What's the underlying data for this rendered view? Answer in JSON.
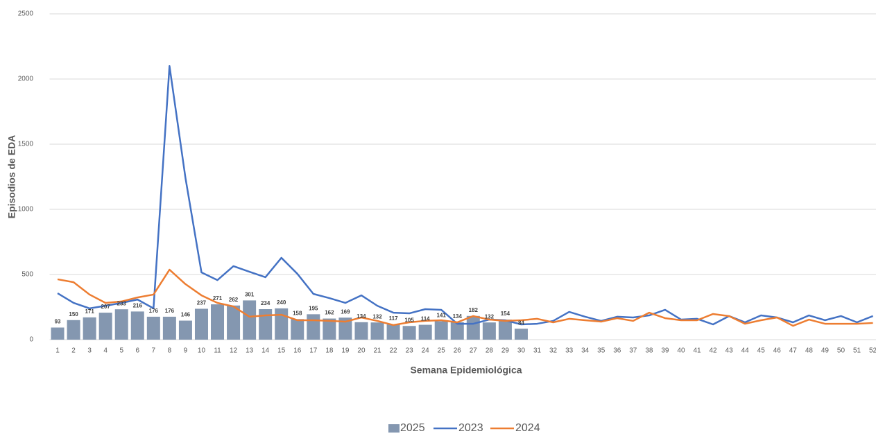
{
  "chart_data": {
    "type": "bar_line",
    "x_label": "Semana Epidemiológica",
    "y_label": "Episodios de EDA",
    "categories": [
      "1",
      "2",
      "3",
      "4",
      "5",
      "6",
      "7",
      "8",
      "9",
      "10",
      "11",
      "12",
      "13",
      "14",
      "15",
      "16",
      "17",
      "18",
      "19",
      "20",
      "21",
      "22",
      "23",
      "24",
      "25",
      "26",
      "27",
      "28",
      "29",
      "30",
      "31",
      "32",
      "33",
      "34",
      "35",
      "36",
      "37",
      "38",
      "39",
      "40",
      "41",
      "42",
      "43",
      "44",
      "45",
      "46",
      "47",
      "48",
      "49",
      "50",
      "51",
      "52"
    ],
    "ylim": [
      0,
      2500
    ],
    "yticks": [
      0,
      500,
      1000,
      1500,
      2000,
      2500
    ],
    "grid": true,
    "legend": "bottom",
    "series": [
      {
        "name": "2025",
        "type": "bar",
        "color": "#8497b0",
        "values": [
          93,
          150,
          171,
          207,
          233,
          216,
          176,
          176,
          146,
          237,
          271,
          262,
          301,
          234,
          240,
          158,
          195,
          162,
          169,
          134,
          132,
          117,
          105,
          114,
          141,
          134,
          182,
          132,
          154,
          84,
          null,
          null,
          null,
          null,
          null,
          null,
          null,
          null,
          null,
          null,
          null,
          null,
          null,
          null,
          null,
          null,
          null,
          null,
          null,
          null,
          null,
          null
        ]
      },
      {
        "name": "2023",
        "type": "line",
        "color": "#4472c4",
        "values": [
          356,
          282,
          240,
          260,
          282,
          308,
          240,
          2100,
          1240,
          516,
          457,
          564,
          521,
          479,
          628,
          505,
          351,
          319,
          282,
          340,
          260,
          207,
          202,
          234,
          229,
          122,
          122,
          154,
          149,
          117,
          122,
          144,
          213,
          176,
          144,
          176,
          170,
          186,
          229,
          154,
          160,
          117,
          181,
          133,
          186,
          170,
          133,
          186,
          149,
          181,
          133,
          181
        ]
      },
      {
        "name": "2024",
        "type": "line",
        "color": "#ed7d31",
        "values": [
          463,
          441,
          346,
          282,
          293,
          324,
          346,
          537,
          426,
          340,
          282,
          255,
          176,
          186,
          191,
          149,
          149,
          144,
          138,
          170,
          144,
          112,
          133,
          144,
          149,
          133,
          181,
          154,
          144,
          149,
          160,
          133,
          160,
          149,
          138,
          165,
          144,
          207,
          165,
          149,
          149,
          197,
          181,
          122,
          149,
          170,
          106,
          154,
          122,
          122,
          122,
          128
        ]
      }
    ]
  }
}
